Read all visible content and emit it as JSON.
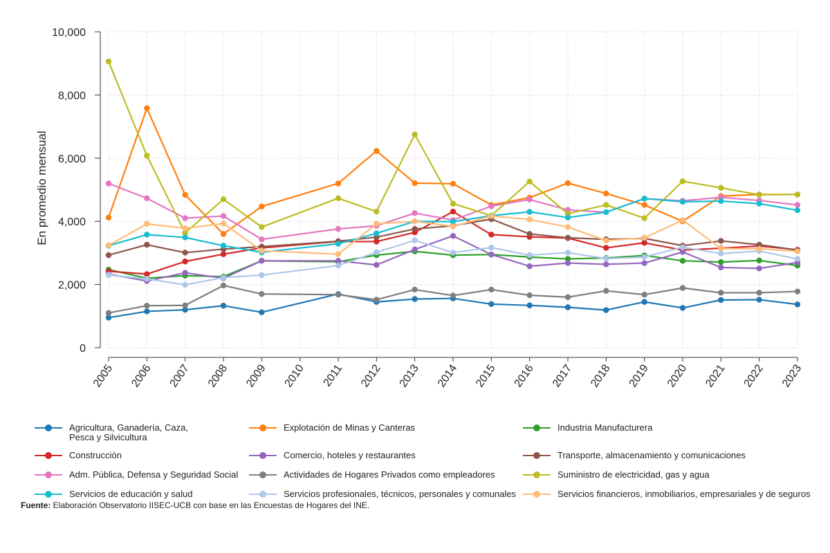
{
  "chart_data": {
    "type": "line",
    "ylabel": "En promedio mensual",
    "ylim": [
      0,
      10000
    ],
    "yticks": [
      0,
      2000,
      4000,
      6000,
      8000,
      10000
    ],
    "ytick_labels": [
      "0",
      "2,000",
      "4,000",
      "6,000",
      "8,000",
      "10,000"
    ],
    "x": [
      "2005",
      "2006",
      "2007",
      "2008",
      "2009",
      "2010",
      "2011",
      "2012",
      "2013",
      "2014",
      "2015",
      "2016",
      "2017",
      "2018",
      "2019",
      "2020",
      "2021",
      "2022",
      "2023"
    ],
    "grid": true,
    "legend_position": "bottom",
    "series": [
      {
        "name": "Agricultura, Ganadería, Caza,\nPesca y Silvicultura",
        "color": "#1f77b4",
        "values": [
          950,
          1150,
          1200,
          1330,
          1120,
          null,
          1700,
          1450,
          1540,
          1560,
          1380,
          1340,
          1280,
          1190,
          1450,
          1260,
          1510,
          1520,
          1370
        ]
      },
      {
        "name": "Explotación de Minas y Canteras",
        "color": "#ff7f0e",
        "values": [
          4120,
          7580,
          4840,
          3600,
          4470,
          null,
          5200,
          6230,
          5210,
          5190,
          4520,
          4750,
          5210,
          4880,
          4520,
          4000,
          4800,
          4850,
          4850
        ]
      },
      {
        "name": "Industria Manufacturera",
        "color": "#2ca02c",
        "values": [
          2470,
          2200,
          2280,
          2250,
          2750,
          null,
          2720,
          2930,
          3050,
          2930,
          2950,
          2870,
          2810,
          2840,
          2920,
          2750,
          2710,
          2760,
          2600
        ]
      },
      {
        "name": "Construcción",
        "color": "#d62728",
        "values": [
          2420,
          2330,
          2730,
          2960,
          3160,
          null,
          3360,
          3360,
          3650,
          4310,
          3580,
          3510,
          3470,
          3160,
          3320,
          3090,
          3150,
          3220,
          3100
        ]
      },
      {
        "name": "Comercio, hoteles y restaurantes",
        "color": "#9467bd",
        "values": [
          2330,
          2110,
          2370,
          2200,
          2750,
          null,
          2750,
          2620,
          3110,
          3540,
          2950,
          2580,
          2680,
          2640,
          2680,
          3030,
          2540,
          2510,
          2700
        ]
      },
      {
        "name": "Transporte, almacenamiento y comunicaciones",
        "color": "#8c564b",
        "values": [
          2930,
          3260,
          3010,
          3120,
          3200,
          null,
          3370,
          3500,
          3760,
          3860,
          4070,
          3600,
          3480,
          3430,
          3460,
          3230,
          3380,
          3260,
          3090
        ]
      },
      {
        "name": "Adm. Pública, Defensa y Seguridad Social",
        "color": "#e377c2",
        "values": [
          5200,
          4730,
          4100,
          4170,
          3430,
          null,
          3760,
          3860,
          4260,
          4040,
          4480,
          4690,
          4360,
          4290,
          4720,
          4650,
          4760,
          4660,
          4520
        ]
      },
      {
        "name": "Actividades de Hogares Privados como empleadores",
        "color": "#7f7f7f",
        "values": [
          1100,
          1330,
          1340,
          1970,
          1700,
          null,
          1680,
          1520,
          1840,
          1650,
          1840,
          1660,
          1600,
          1800,
          1680,
          1890,
          1740,
          1740,
          1780
        ]
      },
      {
        "name": "Suministro de electricidad, gas y agua",
        "color": "#bcbd22",
        "values": [
          9060,
          6080,
          3630,
          4700,
          3820,
          null,
          4730,
          4310,
          6750,
          4560,
          4180,
          5260,
          4240,
          4520,
          4100,
          5270,
          5060,
          4840,
          4850
        ]
      },
      {
        "name": "Servicios de educación y salud",
        "color": "#17becf",
        "values": [
          3230,
          3580,
          3490,
          3230,
          3020,
          null,
          3290,
          3620,
          4000,
          3990,
          4180,
          4300,
          4120,
          4290,
          4720,
          4620,
          4640,
          4560,
          4350
        ]
      },
      {
        "name": "Servicios profesionales, técnicos, personales y comunales",
        "color": "#aec7e8",
        "values": [
          2300,
          2180,
          1990,
          2220,
          2300,
          null,
          2600,
          3020,
          3400,
          3010,
          3170,
          2930,
          3010,
          2820,
          2870,
          3180,
          2980,
          3060,
          2810
        ]
      },
      {
        "name": "Servicios financieros, inmobiliarios, empresariales y de seguros",
        "color": "#ffbb78",
        "values": [
          3240,
          3920,
          3780,
          3930,
          3070,
          null,
          2960,
          3920,
          4000,
          3840,
          4170,
          4060,
          3820,
          3390,
          3480,
          4040,
          3140,
          3130,
          3050
        ]
      }
    ]
  },
  "source": {
    "label": "Fuente:",
    "text": " Elaboración Observatorio IISEC-UCB con base en las Encuestas de Hogares del INE."
  }
}
